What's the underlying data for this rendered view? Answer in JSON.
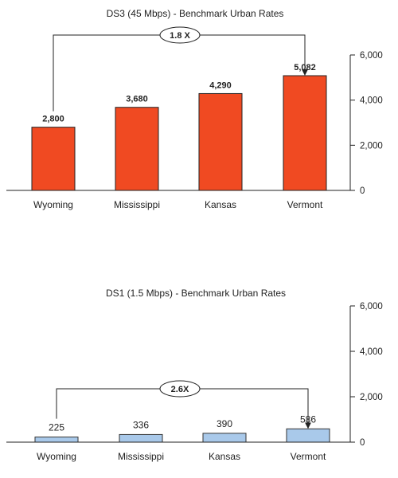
{
  "chart_data": [
    {
      "type": "bar",
      "title": "DS3 (45 Mbps) - Benchmark Urban Rates",
      "categories": [
        "Wyoming",
        "Mississippi",
        "Kansas",
        "Vermont"
      ],
      "values": [
        2800,
        3680,
        4290,
        5082
      ],
      "value_labels": [
        "2,800",
        "3,680",
        "4,290",
        "5,082"
      ],
      "yticks": [
        "0",
        "2,000",
        "4,000",
        "6,000"
      ],
      "ylim": [
        0,
        6000
      ],
      "y_axis_side": "right",
      "grid": false,
      "bar_color": "#f04a22",
      "annotation": {
        "label": "1.8 X",
        "from_category": "Wyoming",
        "to_category": "Vermont"
      }
    },
    {
      "type": "bar",
      "title": "DS1 (1.5 Mbps) - Benchmark Urban Rates",
      "categories": [
        "Wyoming",
        "Mississippi",
        "Kansas",
        "Vermont"
      ],
      "values": [
        225,
        336,
        390,
        586
      ],
      "value_labels": [
        "225",
        "336",
        "390",
        "586"
      ],
      "yticks": [
        "0",
        "2,000",
        "4,000",
        "6,000"
      ],
      "ylim": [
        0,
        6000
      ],
      "y_axis_side": "right",
      "grid": false,
      "bar_color": "#a9c9ea",
      "annotation": {
        "label": "2.6X",
        "from_category": "Wyoming",
        "to_category": "Vermont"
      }
    }
  ]
}
